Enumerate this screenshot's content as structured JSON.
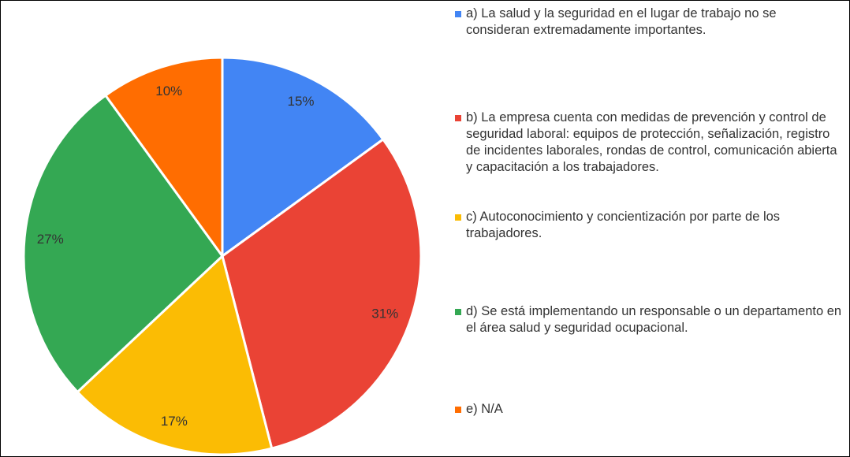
{
  "chart_data": {
    "type": "pie",
    "categories": [
      "a) La salud y la seguridad en el lugar de trabajo no se consideran extremadamente importantes.",
      "b) La empresa cuenta con medidas de prevención y control de seguridad laboral: equipos de protección, señalización, registro de incidentes laborales, rondas de control, comunicación abierta y capacitación a los trabajadores.",
      "c) Autoconocimiento y concientización por parte de los trabajadores.",
      "d) Se está implementando un responsable o un departamento en el área salud y seguridad ocupacional.",
      "e) N/A"
    ],
    "values": [
      15,
      31,
      17,
      27,
      10
    ],
    "value_labels": [
      "15%",
      "31%",
      "17%",
      "27%",
      "10%"
    ],
    "colors": [
      "#4285f4",
      "#ea4335",
      "#fbbc04",
      "#34a853",
      "#ff6d01"
    ],
    "legend": "right"
  }
}
